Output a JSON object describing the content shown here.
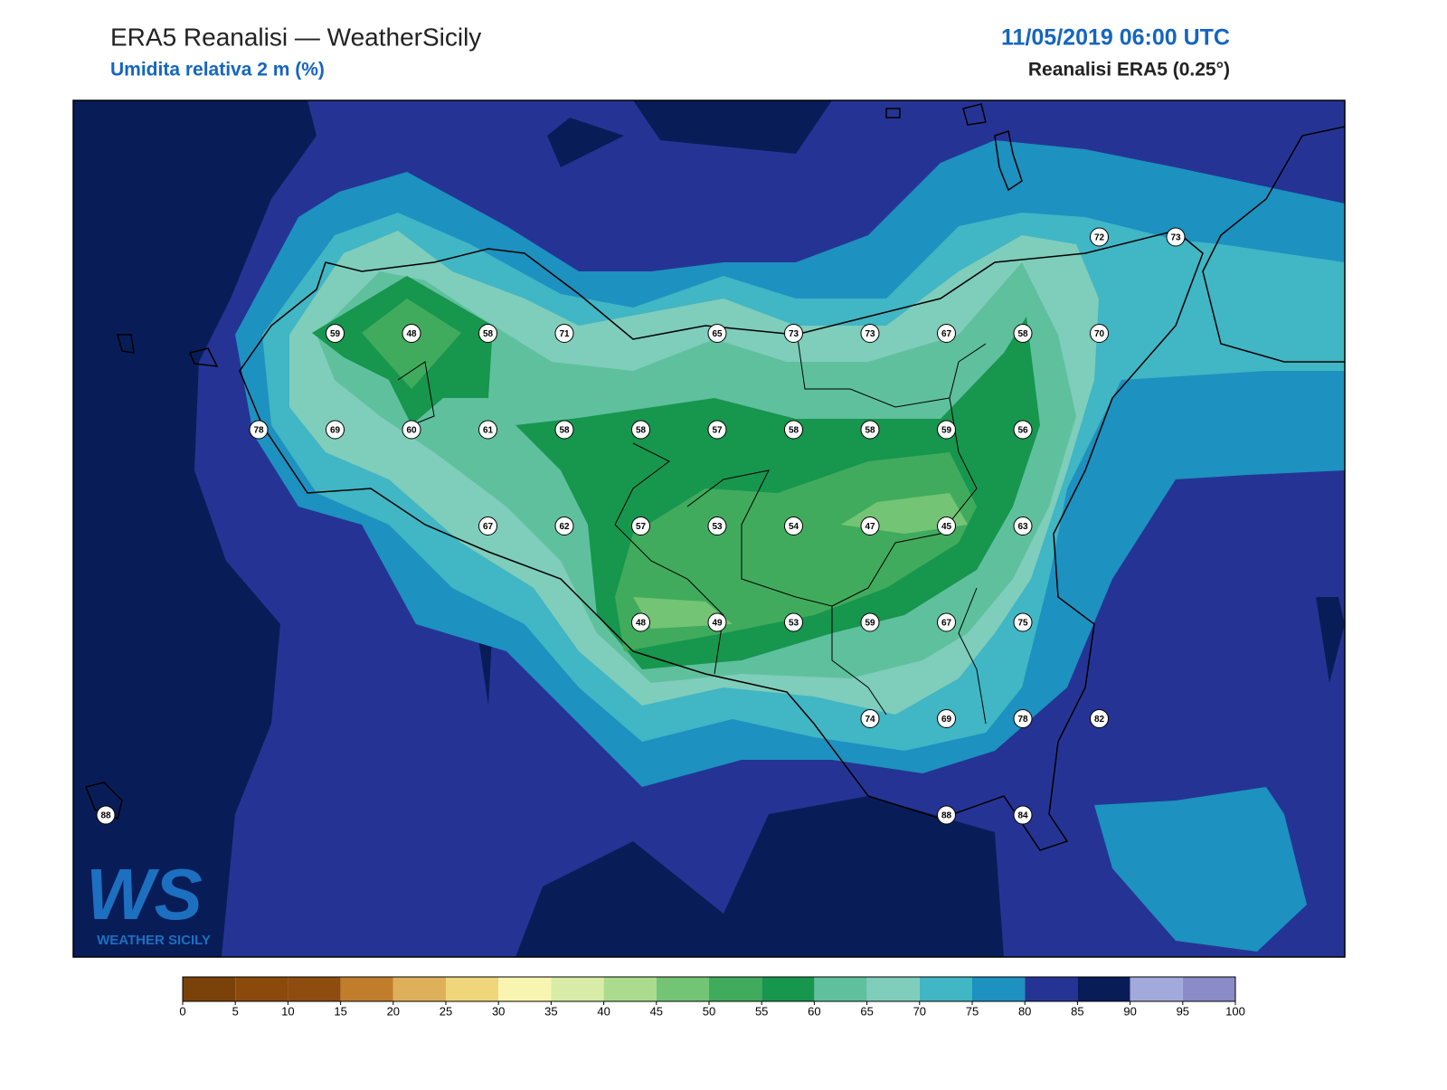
{
  "header": {
    "title": "ERA5 Reanalisi — WeatherSicily",
    "subtitle": "Umidita relativa 2 m (%)",
    "datetime": "11/05/2019 06:00 UTC",
    "source": "Reanalisi ERA5 (0.25°)"
  },
  "stations": [
    72,
    73,
    59,
    48,
    58,
    71,
    65,
    73,
    73,
    67,
    58,
    70,
    78,
    69,
    60,
    61,
    58,
    58,
    57,
    58,
    58,
    59,
    56,
    67,
    62,
    57,
    53,
    54,
    47,
    45,
    63,
    48,
    49,
    53,
    59,
    67,
    75,
    74,
    69,
    78,
    82,
    88,
    88,
    84
  ],
  "colorbar": {
    "ticks": [
      0,
      5,
      10,
      15,
      20,
      25,
      30,
      35,
      40,
      45,
      50,
      55,
      60,
      65,
      70,
      75,
      80,
      85,
      90,
      95,
      100
    ],
    "colors": [
      "#7a4208",
      "#8b4a0c",
      "#8e4c0f",
      "#c07e2c",
      "#dfb05a",
      "#f0d67a",
      "#f8f5b0",
      "#d8eca8",
      "#abdc8e",
      "#74c476",
      "#41ab5d",
      "#17964e",
      "#5fc09e",
      "#7fcdbb",
      "#41b6c4",
      "#1d91c0",
      "#253494",
      "#081d58",
      "#a2aadb",
      "#8b8bc8"
    ]
  },
  "logo": {
    "mark": "WS",
    "name": "WEATHER SICILY"
  }
}
